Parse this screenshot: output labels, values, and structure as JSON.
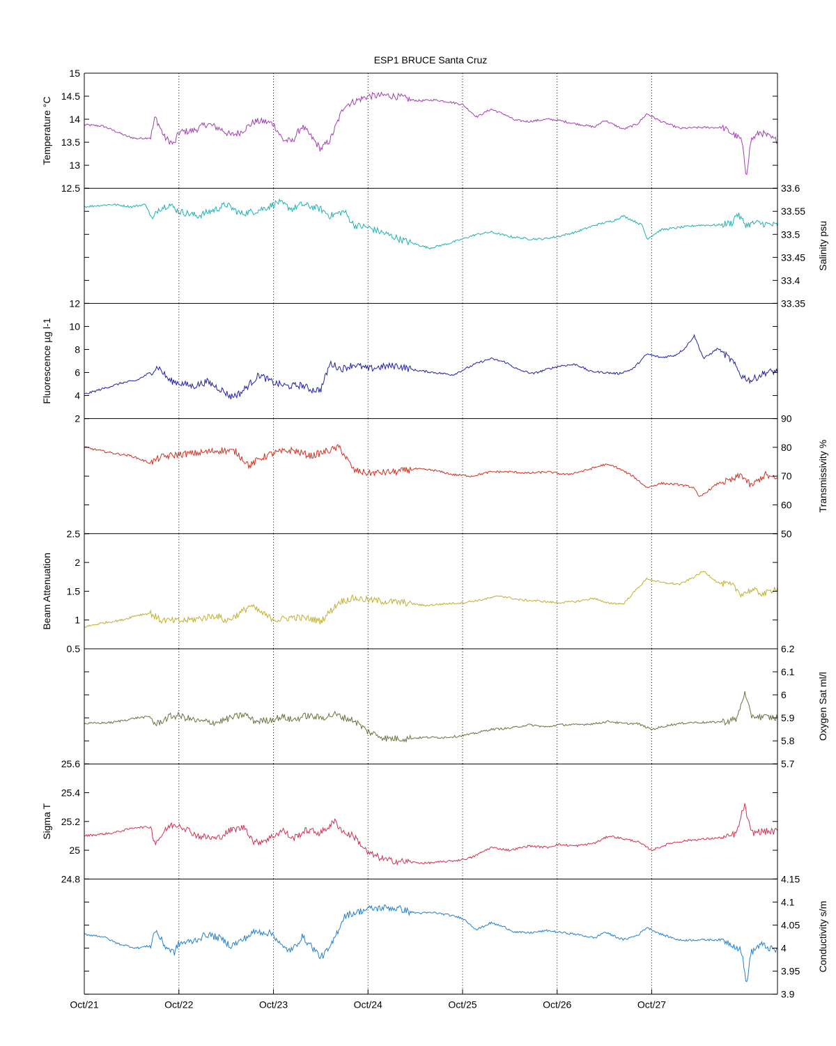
{
  "title": "ESP1 BRUCE Santa Cruz",
  "chart_data": [
    {
      "type": "line",
      "ylabel": "Temperature °C",
      "axis_side": "left",
      "ylim": [
        12.5,
        15
      ],
      "yticks": [
        12.5,
        13,
        13.5,
        14,
        14.5,
        15
      ],
      "color": "#a040b0",
      "x": [
        0,
        0.2,
        0.35,
        0.45,
        0.55,
        0.7,
        0.75,
        0.85,
        0.95,
        1.0,
        1.15,
        1.3,
        1.45,
        1.55,
        1.65,
        1.8,
        1.9,
        2.0,
        2.1,
        2.2,
        2.3,
        2.4,
        2.5,
        2.6,
        2.75,
        3.0,
        3.2,
        3.35,
        3.45,
        3.55,
        3.7,
        3.85,
        4.0,
        4.15,
        4.3,
        4.45,
        4.55,
        4.7,
        4.9,
        5.0,
        5.2,
        5.4,
        5.5,
        5.7,
        5.85,
        5.95,
        6.1,
        6.3,
        6.5,
        6.75,
        6.88,
        6.95,
        7.0,
        7.05,
        7.15,
        7.3
      ],
      "y": [
        13.88,
        13.85,
        13.72,
        13.63,
        13.58,
        13.6,
        14.05,
        13.6,
        13.45,
        13.72,
        13.75,
        13.9,
        13.78,
        13.65,
        13.72,
        13.95,
        13.95,
        13.9,
        13.55,
        13.52,
        13.85,
        13.62,
        13.35,
        13.55,
        14.3,
        14.5,
        14.52,
        14.48,
        14.42,
        14.4,
        14.42,
        14.38,
        14.32,
        14.05,
        14.22,
        14.1,
        13.98,
        13.95,
        14.0,
        13.98,
        13.9,
        13.83,
        13.98,
        13.78,
        13.9,
        14.12,
        13.95,
        13.8,
        13.82,
        13.82,
        13.65,
        13.55,
        12.78,
        13.55,
        13.72,
        13.55
      ]
    },
    {
      "type": "line",
      "ylabel": "Salinity psu",
      "axis_side": "right",
      "ylim": [
        33.35,
        33.6
      ],
      "yticks": [
        33.35,
        33.4,
        33.45,
        33.5,
        33.55,
        33.6
      ],
      "color": "#20b0b0",
      "x": [
        0,
        0.3,
        0.5,
        0.65,
        0.72,
        0.78,
        0.9,
        1.0,
        1.2,
        1.4,
        1.5,
        1.65,
        1.8,
        1.95,
        2.05,
        2.2,
        2.3,
        2.4,
        2.5,
        2.6,
        2.75,
        2.85,
        3.0,
        3.2,
        3.4,
        3.65,
        3.85,
        4.0,
        4.15,
        4.3,
        4.5,
        4.7,
        4.85,
        5.0,
        5.2,
        5.4,
        5.6,
        5.7,
        5.8,
        5.9,
        5.95,
        6.1,
        6.3,
        6.5,
        6.7,
        6.85,
        6.9,
        7.0,
        7.1,
        7.3
      ],
      "y": [
        33.56,
        33.565,
        33.56,
        33.565,
        33.53,
        33.555,
        33.565,
        33.55,
        33.54,
        33.555,
        33.565,
        33.545,
        33.55,
        33.56,
        33.57,
        33.555,
        33.565,
        33.56,
        33.555,
        33.54,
        33.55,
        33.52,
        33.515,
        33.5,
        33.485,
        33.47,
        33.48,
        33.49,
        33.5,
        33.505,
        33.495,
        33.49,
        33.49,
        33.495,
        33.505,
        33.52,
        33.53,
        33.54,
        33.53,
        33.52,
        33.49,
        33.51,
        33.515,
        33.52,
        33.52,
        33.525,
        33.545,
        33.52,
        33.525,
        33.52
      ]
    },
    {
      "type": "line",
      "ylabel": "Fluorescence µg l-1",
      "axis_side": "left",
      "ylim": [
        2,
        12
      ],
      "yticks": [
        2,
        4,
        6,
        8,
        10,
        12
      ],
      "color": "#2020a0",
      "x": [
        0,
        0.2,
        0.4,
        0.55,
        0.7,
        0.78,
        0.9,
        1.0,
        1.15,
        1.3,
        1.45,
        1.55,
        1.65,
        1.75,
        1.85,
        2.0,
        2.15,
        2.3,
        2.4,
        2.5,
        2.6,
        2.72,
        2.85,
        3.0,
        3.15,
        3.3,
        3.5,
        3.7,
        3.9,
        4.0,
        4.15,
        4.3,
        4.45,
        4.6,
        4.75,
        4.9,
        5.05,
        5.2,
        5.35,
        5.5,
        5.65,
        5.8,
        5.95,
        6.1,
        6.25,
        6.35,
        6.45,
        6.55,
        6.7,
        6.85,
        6.95,
        7.05,
        7.2,
        7.3
      ],
      "y": [
        4.1,
        4.6,
        5.1,
        5.3,
        6.0,
        6.5,
        5.3,
        5.1,
        4.8,
        5.2,
        4.5,
        3.9,
        4.2,
        5.0,
        5.8,
        5.1,
        4.8,
        4.9,
        4.5,
        4.5,
        6.8,
        6.3,
        6.7,
        6.3,
        6.5,
        6.6,
        6.2,
        6.0,
        5.8,
        6.2,
        6.8,
        7.2,
        6.9,
        6.2,
        5.9,
        6.3,
        6.6,
        6.7,
        6.1,
        6.0,
        5.9,
        6.3,
        7.6,
        7.3,
        7.5,
        8.1,
        9.2,
        7.2,
        8.1,
        7.0,
        5.7,
        5.3,
        6.0,
        6.1
      ]
    },
    {
      "type": "line",
      "ylabel": "Transmissivity %",
      "axis_side": "right",
      "ylim": [
        50,
        90
      ],
      "yticks": [
        50,
        60,
        70,
        80,
        90
      ],
      "color": "#d03020",
      "x": [
        0,
        0.3,
        0.5,
        0.7,
        0.8,
        1.0,
        1.2,
        1.45,
        1.6,
        1.75,
        1.85,
        2.0,
        2.2,
        2.4,
        2.5,
        2.7,
        2.85,
        3.0,
        3.3,
        3.5,
        3.7,
        3.9,
        4.1,
        4.3,
        4.5,
        4.7,
        4.9,
        5.1,
        5.3,
        5.5,
        5.6,
        5.8,
        5.95,
        6.1,
        6.3,
        6.45,
        6.5,
        6.7,
        6.85,
        6.95,
        7.05,
        7.2,
        7.3
      ],
      "y": [
        80,
        78,
        77,
        74.5,
        76.5,
        77.5,
        78,
        79,
        78.5,
        73.5,
        76,
        78,
        79,
        77,
        78,
        80,
        72,
        71,
        71.5,
        72.5,
        72,
        70.5,
        70,
        71.5,
        71.5,
        71,
        71.5,
        70.5,
        72,
        74,
        73.5,
        70,
        66,
        67.5,
        67,
        66,
        62.5,
        67.5,
        68.5,
        70.5,
        66.5,
        70.5,
        69
      ]
    },
    {
      "type": "line",
      "ylabel": "Beam Attenuation",
      "axis_side": "left",
      "ylim": [
        0.5,
        2.5
      ],
      "yticks": [
        0.5,
        1,
        1.5,
        2,
        2.5
      ],
      "color": "#c0b030",
      "x": [
        0,
        0.2,
        0.4,
        0.55,
        0.7,
        0.8,
        1.0,
        1.2,
        1.4,
        1.5,
        1.65,
        1.75,
        1.85,
        1.95,
        2.05,
        2.2,
        2.4,
        2.5,
        2.7,
        2.85,
        3.0,
        3.2,
        3.4,
        3.6,
        3.8,
        4.0,
        4.2,
        4.4,
        4.6,
        4.8,
        5.0,
        5.2,
        5.4,
        5.5,
        5.7,
        5.85,
        5.95,
        6.1,
        6.3,
        6.45,
        6.55,
        6.7,
        6.85,
        6.95,
        7.05,
        7.2,
        7.3
      ],
      "y": [
        0.88,
        0.95,
        1.0,
        1.08,
        1.12,
        1.0,
        0.98,
        1.02,
        1.08,
        0.98,
        1.12,
        1.25,
        1.15,
        1.05,
        1.0,
        1.05,
        1.02,
        0.98,
        1.32,
        1.38,
        1.35,
        1.32,
        1.3,
        1.25,
        1.28,
        1.3,
        1.35,
        1.42,
        1.35,
        1.33,
        1.3,
        1.32,
        1.38,
        1.3,
        1.28,
        1.55,
        1.72,
        1.65,
        1.62,
        1.75,
        1.85,
        1.65,
        1.6,
        1.45,
        1.52,
        1.45,
        1.55
      ]
    },
    {
      "type": "line",
      "ylabel": "Oxygen Sat ml/l",
      "axis_side": "right",
      "ylim": [
        5.7,
        6.2
      ],
      "yticks": [
        5.7,
        5.8,
        5.9,
        6,
        6.1,
        6.2
      ],
      "color": "#707040",
      "x": [
        0,
        0.3,
        0.55,
        0.7,
        0.75,
        0.9,
        1.0,
        1.2,
        1.4,
        1.55,
        1.7,
        1.8,
        1.95,
        2.1,
        2.2,
        2.35,
        2.5,
        2.65,
        2.75,
        2.85,
        3.0,
        3.2,
        3.4,
        3.6,
        3.8,
        3.95,
        4.1,
        4.3,
        4.5,
        4.7,
        4.9,
        5.0,
        5.2,
        5.4,
        5.55,
        5.7,
        5.85,
        6.0,
        6.2,
        6.4,
        6.6,
        6.8,
        6.9,
        6.98,
        7.05,
        7.15,
        7.3
      ],
      "y": [
        5.875,
        5.88,
        5.9,
        5.905,
        5.87,
        5.905,
        5.91,
        5.885,
        5.88,
        5.9,
        5.915,
        5.885,
        5.89,
        5.905,
        5.89,
        5.91,
        5.9,
        5.915,
        5.9,
        5.89,
        5.84,
        5.81,
        5.81,
        5.815,
        5.815,
        5.82,
        5.83,
        5.85,
        5.855,
        5.87,
        5.86,
        5.87,
        5.87,
        5.875,
        5.885,
        5.875,
        5.875,
        5.85,
        5.87,
        5.88,
        5.88,
        5.885,
        5.895,
        6.01,
        5.91,
        5.905,
        5.9
      ]
    },
    {
      "type": "line",
      "ylabel": "Sigma T",
      "axis_side": "left",
      "ylim": [
        24.8,
        25.6
      ],
      "yticks": [
        24.8,
        25,
        25.2,
        25.4,
        25.6
      ],
      "color": "#d03050",
      "x": [
        0,
        0.3,
        0.55,
        0.7,
        0.75,
        0.9,
        1.0,
        1.2,
        1.4,
        1.55,
        1.7,
        1.8,
        1.95,
        2.1,
        2.2,
        2.35,
        2.5,
        2.65,
        2.75,
        2.85,
        3.0,
        3.2,
        3.4,
        3.6,
        3.8,
        3.95,
        4.1,
        4.3,
        4.5,
        4.7,
        4.9,
        5.0,
        5.2,
        5.4,
        5.55,
        5.7,
        5.85,
        6.0,
        6.2,
        6.4,
        6.6,
        6.8,
        6.9,
        6.98,
        7.05,
        7.15,
        7.3
      ],
      "y": [
        25.1,
        25.12,
        25.16,
        25.16,
        25.05,
        25.17,
        25.18,
        25.1,
        25.08,
        25.14,
        25.16,
        25.05,
        25.08,
        25.14,
        25.08,
        25.14,
        25.12,
        25.2,
        25.12,
        25.1,
        24.98,
        24.93,
        24.92,
        24.91,
        24.92,
        24.93,
        24.95,
        25.02,
        25.0,
        25.03,
        25.02,
        25.04,
        25.03,
        25.05,
        25.1,
        25.08,
        25.06,
        25.0,
        25.05,
        25.07,
        25.08,
        25.09,
        25.12,
        25.32,
        25.12,
        25.13,
        25.13
      ]
    },
    {
      "type": "line",
      "ylabel": "Conductivity s/m",
      "axis_side": "right",
      "ylim": [
        3.9,
        4.15
      ],
      "yticks": [
        3.9,
        3.95,
        4,
        4.05,
        4.1,
        4.15
      ],
      "color": "#2080d0",
      "x": [
        0,
        0.2,
        0.35,
        0.45,
        0.55,
        0.7,
        0.75,
        0.85,
        0.95,
        1.0,
        1.15,
        1.3,
        1.45,
        1.55,
        1.65,
        1.8,
        1.9,
        2.0,
        2.1,
        2.2,
        2.3,
        2.4,
        2.5,
        2.6,
        2.75,
        3.0,
        3.2,
        3.35,
        3.45,
        3.55,
        3.7,
        3.85,
        4.0,
        4.15,
        4.3,
        4.45,
        4.55,
        4.7,
        4.9,
        5.0,
        5.2,
        5.4,
        5.5,
        5.7,
        5.85,
        5.95,
        6.1,
        6.3,
        6.5,
        6.75,
        6.88,
        6.95,
        7.0,
        7.05,
        7.15,
        7.3
      ],
      "y": [
        4.03,
        4.025,
        4.01,
        4.005,
        4.0,
        4.005,
        4.04,
        4.005,
        3.99,
        4.01,
        4.015,
        4.03,
        4.02,
        4.005,
        4.015,
        4.035,
        4.035,
        4.03,
        4.0,
        3.995,
        4.025,
        4.005,
        3.98,
        4.0,
        4.07,
        4.085,
        4.088,
        4.085,
        4.078,
        4.076,
        4.077,
        4.072,
        4.065,
        4.04,
        4.055,
        4.045,
        4.035,
        4.033,
        4.038,
        4.035,
        4.03,
        4.022,
        4.035,
        4.018,
        4.028,
        4.045,
        4.03,
        4.017,
        4.018,
        4.018,
        4.005,
        3.995,
        3.92,
        3.99,
        4.008,
        3.995
      ]
    }
  ],
  "x_axis": {
    "ticks": [
      "Oct/21",
      "Oct/22",
      "Oct/23",
      "Oct/24",
      "Oct/25",
      "Oct/26",
      "Oct/27"
    ],
    "xlim_days": [
      0,
      7.33
    ],
    "grid": "dotted vertical lines at each day"
  }
}
